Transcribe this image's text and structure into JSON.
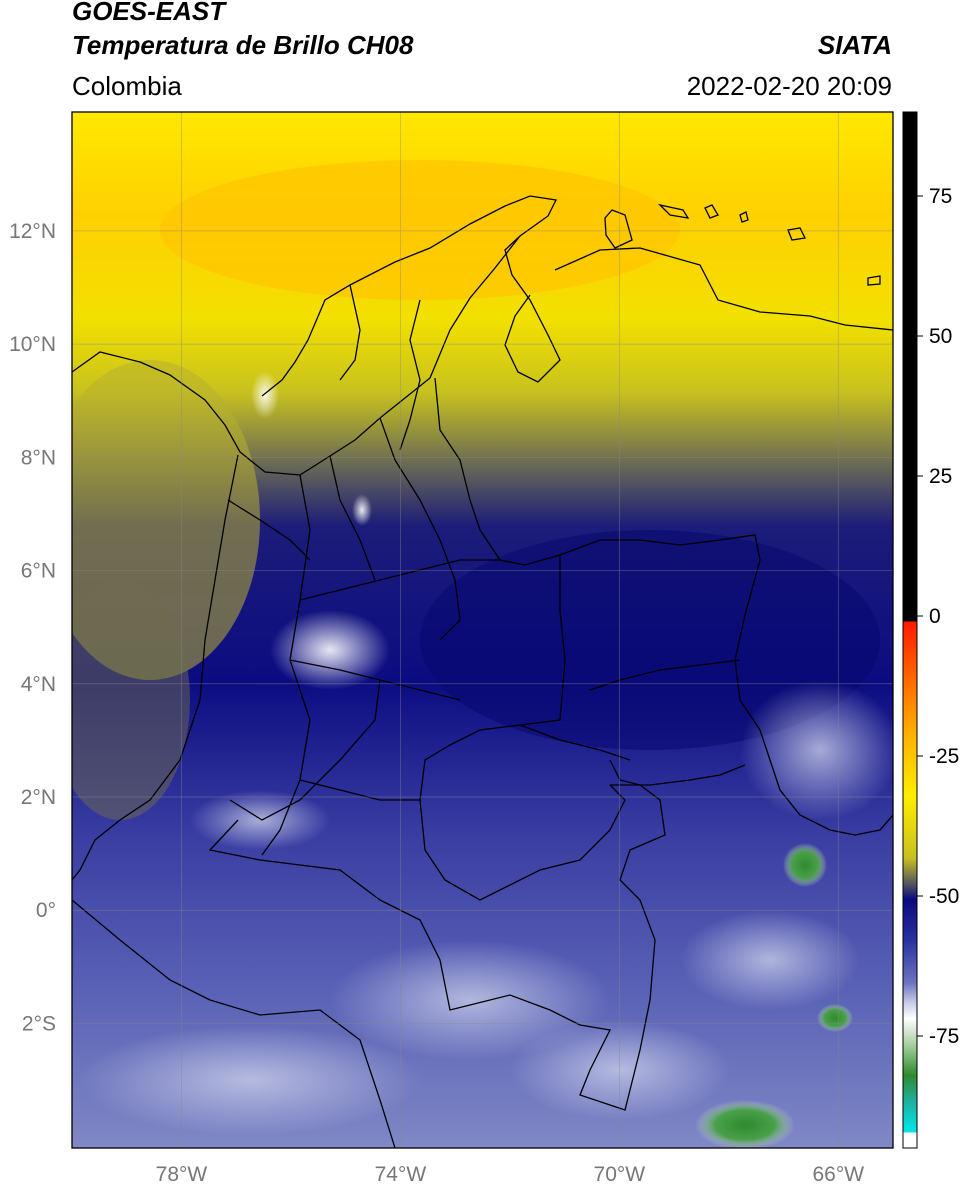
{
  "header": {
    "satellite": "GOES-EAST",
    "product": "Temperatura de Brillo CH08",
    "brand": "SIATA",
    "region": "Colombia",
    "datetime": "2022-02-20 20:09"
  },
  "map": {
    "lon_ticks": [
      {
        "value": -78,
        "label": "78°W"
      },
      {
        "value": -74,
        "label": "74°W"
      },
      {
        "value": -70,
        "label": "70°W"
      },
      {
        "value": -66,
        "label": "66°W"
      }
    ],
    "lat_ticks": [
      {
        "value": 12,
        "label": "12°N"
      },
      {
        "value": 10,
        "label": "10°N"
      },
      {
        "value": 8,
        "label": "8°N"
      },
      {
        "value": 6,
        "label": "6°N"
      },
      {
        "value": 4,
        "label": "4°N"
      },
      {
        "value": 2,
        "label": "2°N"
      },
      {
        "value": 0,
        "label": "0°"
      },
      {
        "value": -2,
        "label": "2°S"
      }
    ],
    "lon_range": [
      -80,
      -65
    ],
    "lat_range": [
      -4.2,
      14.1
    ],
    "grid": true
  },
  "colorbar": {
    "range": [
      -95,
      90
    ],
    "ticks": [
      {
        "value": 75,
        "label": "75"
      },
      {
        "value": 50,
        "label": "50"
      },
      {
        "value": 25,
        "label": "25"
      },
      {
        "value": 0,
        "label": "0"
      },
      {
        "value": -25,
        "label": "-25"
      },
      {
        "value": -50,
        "label": "-50"
      },
      {
        "value": -75,
        "label": "-75"
      }
    ],
    "colors": {
      "black": "#000000",
      "red": "#ff1a00",
      "orange": "#ff9900",
      "yellow": "#ffee00",
      "olive": "#c9c020",
      "gray": "#555560",
      "navy": "#0a0a80",
      "blue": "#4a55b0",
      "lavender": "#c8cce8",
      "white": "#ffffff",
      "green": "#2e8b2e",
      "teal": "#20b0a0",
      "cyan": "#00e8e8"
    }
  }
}
